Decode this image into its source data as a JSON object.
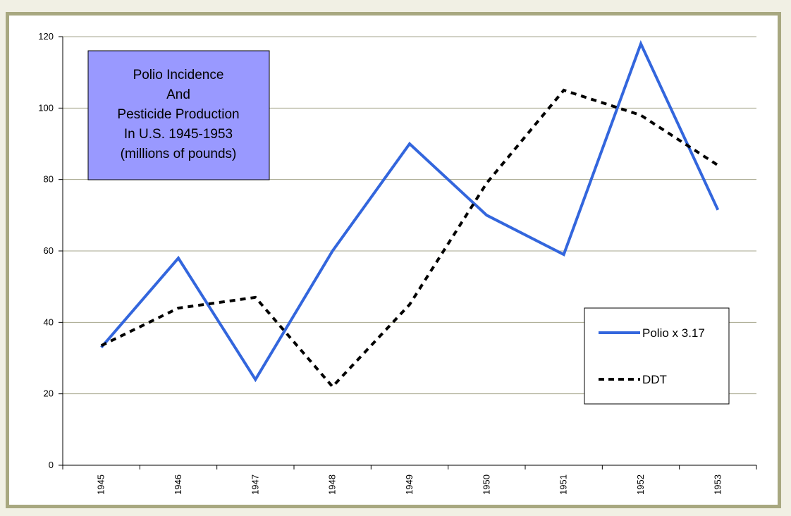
{
  "colors": {
    "frame": "#a8a880",
    "page_background": "#f1f0e4",
    "title_box": "#9999ff",
    "polio_line": "#3366dd",
    "ddt_line": "#000000",
    "gridline": "#a6a68c"
  },
  "chart_data": {
    "type": "line",
    "title_lines": [
      "Polio Incidence",
      "And",
      "Pesticide Production",
      "In U.S. 1945-1953",
      "(millions of pounds)"
    ],
    "xlabel": "",
    "ylabel": "",
    "categories": [
      "1945",
      "1946",
      "1947",
      "1948",
      "1949",
      "1950",
      "1951",
      "1952",
      "1953"
    ],
    "ylim": [
      0,
      120
    ],
    "yticks": [
      "0",
      "20",
      "40",
      "60",
      "80",
      "100",
      "120"
    ],
    "grid": true,
    "legend_position": "right",
    "series": [
      {
        "name": "Polio x 3.17",
        "style": "solid",
        "values": [
          33,
          58,
          24,
          60,
          90,
          70,
          59,
          118,
          71.5
        ]
      },
      {
        "name": "DDT",
        "style": "dashed",
        "values": [
          33.5,
          44,
          47,
          22,
          45,
          79,
          105,
          98,
          84
        ]
      }
    ]
  }
}
